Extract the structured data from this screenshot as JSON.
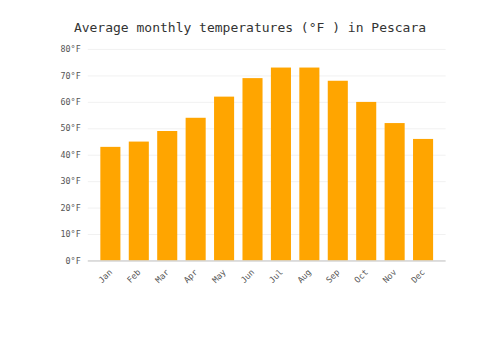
{
  "chart_data": {
    "type": "bar",
    "title": "Average monthly temperatures (°F ) in Pescara",
    "categories": [
      "Jan",
      "Feb",
      "Mar",
      "Apr",
      "May",
      "Jun",
      "Jul",
      "Aug",
      "Sep",
      "Oct",
      "Nov",
      "Dec"
    ],
    "values": [
      43,
      45,
      49,
      54,
      62,
      69,
      73,
      73,
      68,
      60,
      52,
      46
    ],
    "color": "#FFA500",
    "ylim": [
      0,
      80
    ],
    "yticks": [
      {
        "value": 0,
        "label": "0°F"
      },
      {
        "value": 10,
        "label": "10°F"
      },
      {
        "value": 20,
        "label": "20°F"
      },
      {
        "value": 30,
        "label": "30°F"
      },
      {
        "value": 40,
        "label": "40°F"
      },
      {
        "value": 50,
        "label": "50°F"
      },
      {
        "value": 60,
        "label": "60°F"
      },
      {
        "value": 70,
        "label": "70°F"
      },
      {
        "value": 80,
        "label": "80°F"
      }
    ],
    "grid": true
  }
}
